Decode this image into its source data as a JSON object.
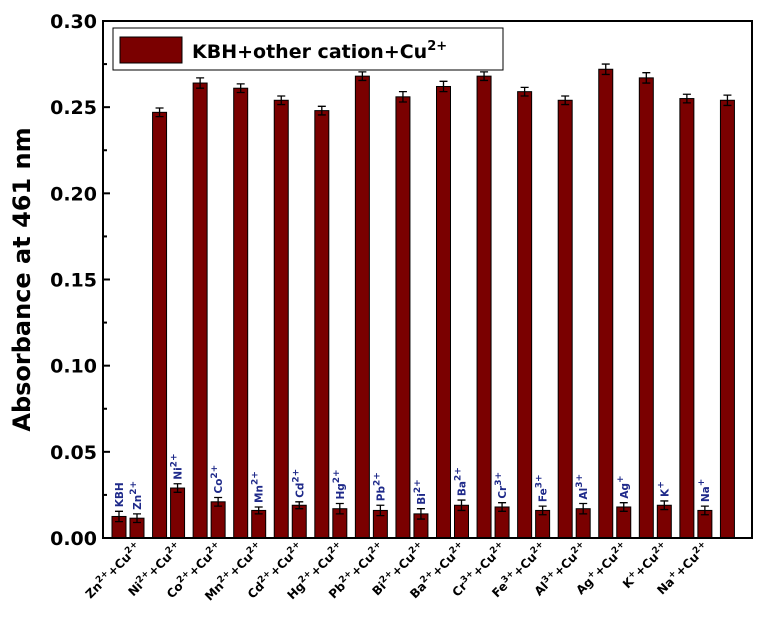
{
  "chart_data": {
    "type": "bar",
    "ylabel": "Absorbance at 461 nm",
    "ylim": [
      0,
      0.3
    ],
    "yticks": [
      "0.00",
      "0.05",
      "0.10",
      "0.15",
      "0.20",
      "0.25",
      "0.30"
    ],
    "legend": {
      "position": "top-left",
      "label": "KBH+other cation+Cu",
      "label_sup": "2+"
    },
    "bar_color": "#7a0000",
    "inner_label_color": "#1f2a8a",
    "groups": [
      {
        "category": "Zn",
        "category_sup": "2+",
        "category_suffix": "+Cu",
        "category_suffix_sup": "2+",
        "first_label": "KBH",
        "second_label": "Zn",
        "second_sup": "2+",
        "first": 0.0125,
        "first_err": 0.003,
        "second": 0.0115,
        "second_err": 0.0025
      },
      {
        "category": "Ni",
        "category_sup": "2+",
        "category_suffix": "+Cu",
        "category_suffix_sup": "2+",
        "second_label": "Ni",
        "second_sup": "2+",
        "first": 0.247,
        "first_err": 0.0025,
        "second": 0.029,
        "second_err": 0.0025
      },
      {
        "category": "Co",
        "category_sup": "2+",
        "category_suffix": "+Cu",
        "category_suffix_sup": "2+",
        "second_label": "Co",
        "second_sup": "2+",
        "first": 0.264,
        "first_err": 0.003,
        "second": 0.021,
        "second_err": 0.0025
      },
      {
        "category": "Mn",
        "category_sup": "2+",
        "category_suffix": "+Cu",
        "category_suffix_sup": "2+",
        "second_label": "Mn",
        "second_sup": "2+",
        "first": 0.261,
        "first_err": 0.0025,
        "second": 0.016,
        "second_err": 0.002
      },
      {
        "category": "Cd",
        "category_sup": "2+",
        "category_suffix": "+Cu",
        "category_suffix_sup": "2+",
        "second_label": "Cd",
        "second_sup": "2+",
        "first": 0.254,
        "first_err": 0.0025,
        "second": 0.019,
        "second_err": 0.002
      },
      {
        "category": "Hg",
        "category_sup": "2+",
        "category_suffix": "+Cu",
        "category_suffix_sup": "2+",
        "second_label": "Hg",
        "second_sup": "2+",
        "first": 0.248,
        "first_err": 0.0025,
        "second": 0.017,
        "second_err": 0.003
      },
      {
        "category": "Pb",
        "category_sup": "2+",
        "category_suffix": "+Cu",
        "category_suffix_sup": "2+",
        "second_label": "Pb",
        "second_sup": "2+",
        "first": 0.268,
        "first_err": 0.0025,
        "second": 0.016,
        "second_err": 0.003
      },
      {
        "category": "Bi",
        "category_sup": "2+",
        "category_suffix": "+Cu",
        "category_suffix_sup": "2+",
        "second_label": "Bi",
        "second_sup": "2+",
        "first": 0.256,
        "first_err": 0.003,
        "second": 0.014,
        "second_err": 0.003
      },
      {
        "category": "Ba",
        "category_sup": "2+",
        "category_suffix": "+Cu",
        "category_suffix_sup": "2+",
        "second_label": "Ba",
        "second_sup": "2+",
        "first": 0.262,
        "first_err": 0.003,
        "second": 0.019,
        "second_err": 0.003
      },
      {
        "category": "Cr",
        "category_sup": "3+",
        "category_suffix": "+Cu",
        "category_suffix_sup": "2+",
        "second_label": "Cr",
        "second_sup": "3+",
        "first": 0.268,
        "first_err": 0.0025,
        "second": 0.018,
        "second_err": 0.0025
      },
      {
        "category": "Fe",
        "category_sup": "3+",
        "category_suffix": "+Cu",
        "category_suffix_sup": "2+",
        "second_label": "Fe",
        "second_sup": "3+",
        "first": 0.259,
        "first_err": 0.0025,
        "second": 0.016,
        "second_err": 0.0025
      },
      {
        "category": "Al",
        "category_sup": "3+",
        "category_suffix": "+Cu",
        "category_suffix_sup": "2+",
        "second_label": "Al",
        "second_sup": "3+",
        "first": 0.254,
        "first_err": 0.0025,
        "second": 0.017,
        "second_err": 0.003
      },
      {
        "category": "Ag",
        "category_sup": "+",
        "category_suffix": "+Cu",
        "category_suffix_sup": "2+",
        "second_label": "Ag",
        "second_sup": "+",
        "first": 0.272,
        "first_err": 0.003,
        "second": 0.018,
        "second_err": 0.0025
      },
      {
        "category": "K",
        "category_sup": "+",
        "category_suffix": "+Cu",
        "category_suffix_sup": "2+",
        "second_label": "K",
        "second_sup": "+",
        "first": 0.267,
        "first_err": 0.003,
        "second": 0.019,
        "second_err": 0.0025
      },
      {
        "category": "Na",
        "category_sup": "+",
        "category_suffix": "+Cu",
        "category_suffix_sup": "2+",
        "second_label": "Na",
        "second_sup": "+",
        "first": 0.255,
        "first_err": 0.0025,
        "second": 0.016,
        "second_err": 0.0025
      },
      {
        "category": "",
        "category_sup": "",
        "category_suffix": "",
        "category_suffix_sup": "",
        "first": 0.254,
        "first_err": 0.003,
        "second": null,
        "second_err": null
      }
    ]
  }
}
